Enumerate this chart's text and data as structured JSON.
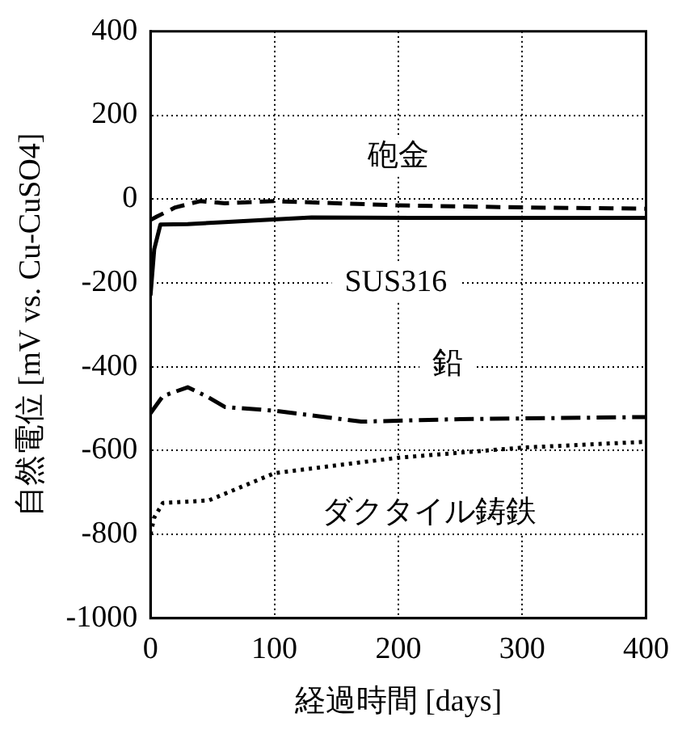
{
  "chart_data": {
    "type": "line",
    "xlabel": "経過時間 [days]",
    "ylabel": "自然電位 [mV vs. Cu-CuSO4]",
    "xlim": [
      0,
      400
    ],
    "xticks": [
      0,
      100,
      200,
      300,
      400
    ],
    "ylim": [
      -1000,
      400
    ],
    "yticks": [
      -1000,
      -800,
      -600,
      -400,
      -200,
      0,
      200,
      400
    ],
    "grid": true,
    "legend": false,
    "marker": "none",
    "series": [
      {
        "name": "砲金",
        "color": "#000000",
        "line_style": "dashed",
        "x": [
          0,
          5,
          20,
          40,
          60,
          100,
          200,
          300,
          400
        ],
        "values": [
          -50,
          -42,
          -20,
          -5,
          -10,
          -5,
          -15,
          -20,
          -23
        ]
      },
      {
        "name": "SUS316",
        "color": "#000000",
        "line_style": "solid",
        "x": [
          0,
          3,
          8,
          30,
          60,
          90,
          130,
          250,
          400
        ],
        "values": [
          -230,
          -120,
          -61,
          -60,
          -55,
          -50,
          -44,
          -45,
          -45
        ]
      },
      {
        "name": "鉛",
        "color": "#000000",
        "line_style": "dashdot",
        "x": [
          0,
          10,
          30,
          45,
          60,
          100,
          170,
          250,
          400
        ],
        "values": [
          -511,
          -470,
          -449,
          -470,
          -496,
          -505,
          -531,
          -525,
          -520
        ]
      },
      {
        "name": "ダクタイル鋳鉄",
        "color": "#000000",
        "line_style": "dotted",
        "x": [
          0,
          3,
          10,
          47,
          100,
          200,
          300,
          400
        ],
        "values": [
          -800,
          -760,
          -725,
          -719,
          -654,
          -617,
          -593,
          -579
        ]
      }
    ]
  }
}
